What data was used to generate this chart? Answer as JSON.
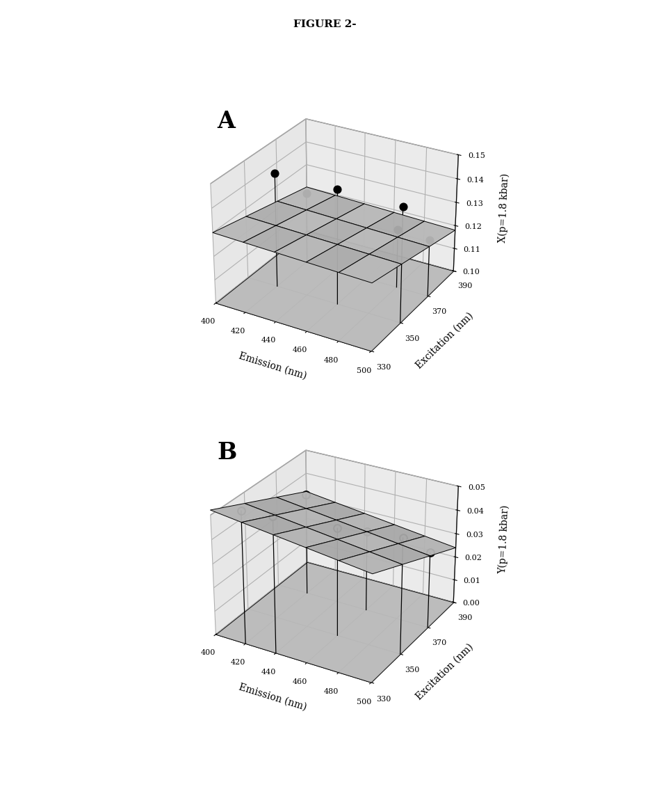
{
  "figure_title": "FIGURE 2-",
  "subplot_A_label": "A",
  "subplot_B_label": "B",
  "emission_ticks": [
    400,
    420,
    440,
    460,
    480,
    500
  ],
  "excitation_ticks": [
    330,
    350,
    370,
    390
  ],
  "xlabel": "Emission (nm)",
  "excitation_label": "Excitation (nm)",
  "ylabel_A": "X(p=1.8 kbar)",
  "ylabel_B": "Y(p=1.8 kbar)",
  "zlim_A": [
    0.1,
    0.15
  ],
  "zticks_A": [
    0.1,
    0.11,
    0.12,
    0.13,
    0.14,
    0.15
  ],
  "zlim_B": [
    0.0,
    0.05
  ],
  "zticks_B": [
    0.0,
    0.01,
    0.02,
    0.03,
    0.04,
    0.05
  ],
  "surface_color_A": "#b8b8b8",
  "surface_color_B": "#b0b0b0",
  "wall_color": "#c0c0c0",
  "floor_color_A": "#f0f0f0",
  "floor_color_B": "#f0f0f0",
  "points_A": [
    [
      420,
      350,
      0.148
    ],
    [
      460,
      350,
      0.148
    ],
    [
      500,
      350,
      0.148
    ],
    [
      420,
      370,
      0.13
    ],
    [
      480,
      370,
      0.125
    ],
    [
      500,
      370,
      0.124
    ]
  ],
  "points_B": [
    [
      420,
      330,
      0.055
    ],
    [
      440,
      330,
      0.056
    ],
    [
      460,
      350,
      0.045
    ],
    [
      500,
      350,
      0.048
    ],
    [
      420,
      370,
      0.043
    ],
    [
      460,
      370,
      0.034
    ],
    [
      500,
      370,
      0.032
    ]
  ],
  "elev": 28,
  "azim": -60,
  "figsize": [
    9.35,
    11.34
  ],
  "dpi": 100
}
